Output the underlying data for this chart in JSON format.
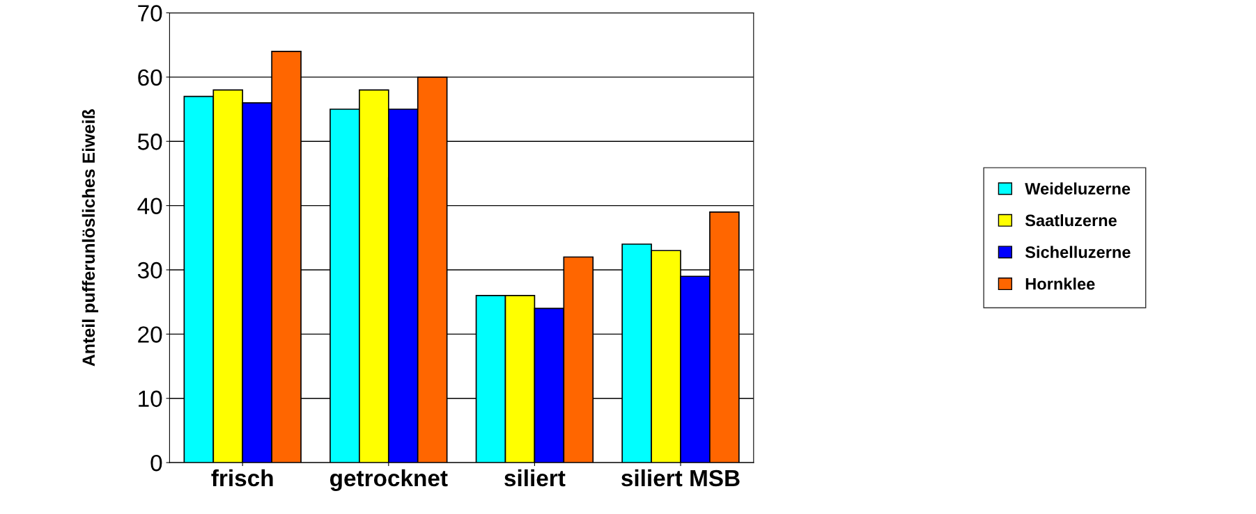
{
  "chart_data": {
    "type": "bar",
    "ylabel": "Anteil pufferunlösliches Eiweiß",
    "categories": [
      "frisch",
      "getrocknet",
      "siliert",
      "siliert MSB"
    ],
    "series": [
      {
        "name": "Weideluzerne",
        "color": "#00ffff",
        "values": [
          57,
          55,
          26,
          34
        ]
      },
      {
        "name": "Saatluzerne",
        "color": "#ffff00",
        "values": [
          58,
          58,
          26,
          33
        ]
      },
      {
        "name": "Sichelluzerne",
        "color": "#0000ff",
        "values": [
          56,
          55,
          24,
          29
        ]
      },
      {
        "name": "Hornklee",
        "color": "#ff6600",
        "values": [
          64,
          60,
          32,
          39
        ]
      }
    ],
    "ylim": [
      0,
      70
    ],
    "yticks": [
      0,
      10,
      20,
      30,
      40,
      50,
      60,
      70
    ],
    "grid": "y",
    "legend": "right"
  }
}
